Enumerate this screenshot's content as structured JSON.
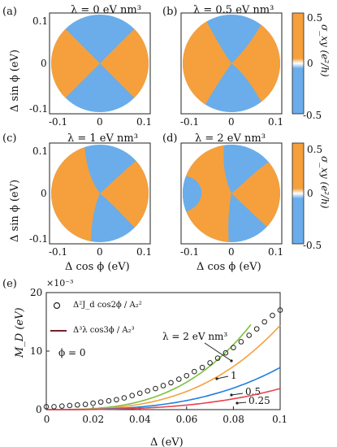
{
  "colors": {
    "orange": "#f5a03d",
    "blue": "#6aadea",
    "green": "#7cc13f",
    "orange_line": "#f5a03d",
    "blue_line": "#1f7fde",
    "red_line": "#e8424b"
  },
  "panels": [
    {
      "tag": "(a)",
      "title": "λ = 0 eV nm³"
    },
    {
      "tag": "(b)",
      "title": "λ = 0.5 eV nm³"
    },
    {
      "tag": "(c)",
      "title": "λ = 1 eV nm³"
    },
    {
      "tag": "(d)",
      "title": "λ = 2 eV nm³"
    }
  ],
  "axis": {
    "ylabel": "Δ sin ϕ (eV)",
    "xlabel": "Δ cos ϕ (eV)",
    "ticks": [
      "-0.1",
      "0",
      "0.1"
    ]
  },
  "colorbar": {
    "label": "σ_xy (e²/h)",
    "ticks": [
      "0.5",
      "0",
      "-0.5"
    ]
  },
  "chart_data": {
    "type": "line",
    "tag": "(e)",
    "multiplier": "×10⁻³",
    "xlabel": "Δ (eV)",
    "ylabel": "M_D (eV)",
    "xlim": [
      0,
      0.1
    ],
    "ylim": [
      0,
      20
    ],
    "xticks": [
      "0",
      "0.02",
      "0.04",
      "0.06",
      "0.08",
      "0.1"
    ],
    "yticks": [
      "0",
      "10",
      "20"
    ],
    "legend": [
      {
        "label": "Δ²J_d cos2ϕ / A₂²",
        "style": "circle"
      },
      {
        "label": "Δ³λ cos3ϕ / A₂³",
        "style": "line"
      }
    ],
    "phi_label": "ϕ = 0",
    "annotations": [
      "λ = 2 eV nm³",
      "1",
      "0.5",
      "0.25"
    ],
    "series": [
      {
        "name": "λ = 2 eV nm³",
        "coef": 0.0217,
        "x_end": 0.0875
      },
      {
        "name": "1",
        "coef": 0.0144,
        "x_end": 0.1
      },
      {
        "name": "0.5",
        "coef": 0.0072,
        "x_end": 0.1
      },
      {
        "name": "0.25",
        "coef": 0.0036,
        "x_end": 0.1
      }
    ],
    "circles": {
      "x": [
        0,
        0.0033,
        0.0067,
        0.01,
        0.0133,
        0.0167,
        0.02,
        0.0233,
        0.0267,
        0.03,
        0.0333,
        0.0367,
        0.04,
        0.0433,
        0.0467,
        0.05,
        0.0533,
        0.0567,
        0.06,
        0.0633,
        0.0667,
        0.07,
        0.0733,
        0.0767,
        0.08,
        0.0833,
        0.0867,
        0.09,
        0.0933,
        0.0967,
        0.1
      ],
      "y": [
        0.5,
        0.5,
        0.6,
        0.7,
        0.8,
        0.9,
        1.1,
        1.3,
        1.5,
        1.7,
        2.0,
        2.4,
        2.8,
        3.2,
        3.6,
        4.1,
        4.6,
        5.2,
        5.8,
        6.5,
        7.2,
        8.0,
        8.8,
        9.7,
        10.6,
        11.6,
        12.7,
        13.8,
        15.0,
        16.1,
        17.0
      ]
    }
  }
}
